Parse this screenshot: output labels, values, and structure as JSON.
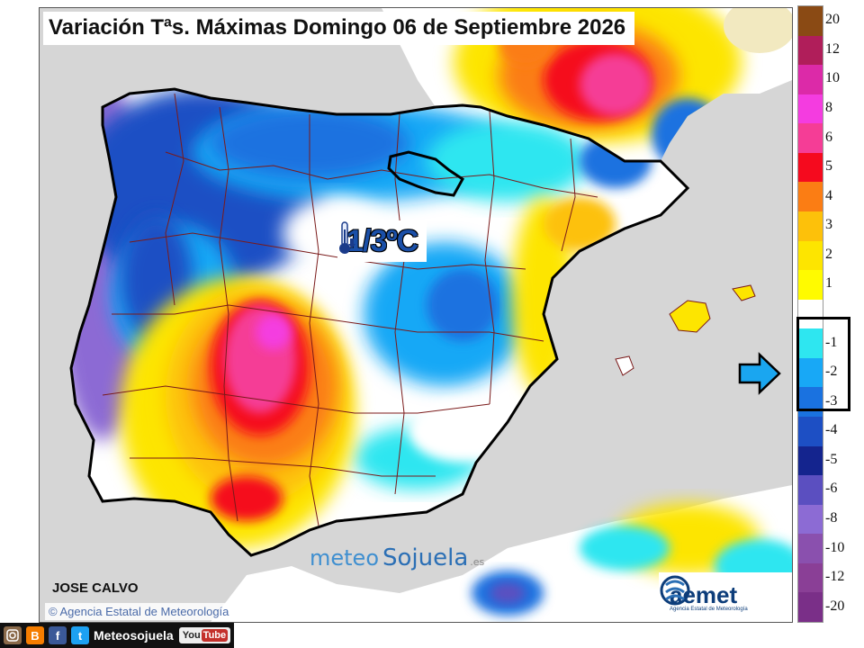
{
  "title": "Variación Tªs. Máximas Domingo 06 de Septiembre 2026",
  "anomaly_label": "1/3ºC",
  "author": "JOSE CALVO",
  "credit": "Agencia Estatal de Meteorología",
  "credit_symbol": "©",
  "brand": {
    "part1": "meteo",
    "part2": "Sojuela",
    "suffix": ".es"
  },
  "aemet_logo": {
    "name": "aemet",
    "sub": "Agencia Estatal de Meteorología"
  },
  "footer": {
    "site_name": "Meteosojuela",
    "youtube_you": "You",
    "youtube_tube": "Tube"
  },
  "legend": [
    {
      "label": "20",
      "color": "#8a4a14"
    },
    {
      "label": "12",
      "color": "#b01e5a"
    },
    {
      "label": "10",
      "color": "#dc2aa8"
    },
    {
      "label": "8",
      "color": "#f43ce0"
    },
    {
      "label": "6",
      "color": "#f53d96"
    },
    {
      "label": "5",
      "color": "#f50a1e"
    },
    {
      "label": "4",
      "color": "#fb7d14"
    },
    {
      "label": "3",
      "color": "#fdc10a"
    },
    {
      "label": "2",
      "color": "#fde500"
    },
    {
      "label": "1",
      "color": "#fffb00"
    },
    {
      "label": "",
      "color": "#ffffff"
    },
    {
      "label": "-1",
      "color": "#2ee6f0"
    },
    {
      "label": "-2",
      "color": "#18a8f6"
    },
    {
      "label": "-3",
      "color": "#1a72e0"
    },
    {
      "label": "-4",
      "color": "#1d4fc4"
    },
    {
      "label": "-5",
      "color": "#14248e"
    },
    {
      "label": "-6",
      "color": "#5b4fc0"
    },
    {
      "label": "-8",
      "color": "#8c6bd4"
    },
    {
      "label": "-10",
      "color": "#8a50ae"
    },
    {
      "label": "-12",
      "color": "#8a3f96"
    },
    {
      "label": "-20",
      "color": "#7a2f88"
    }
  ],
  "colors": {
    "sea": "#d6d6d6",
    "land_neutral": "#ffffff",
    "borders": "#7a1a1a",
    "coast": "#000000",
    "title_text": "#111111",
    "anomaly_text": "#1a4fa8"
  },
  "icons": [
    "thermometer-down-icon",
    "right-arrow-icon",
    "aemet-logo-icon",
    "instagram-icon",
    "blogger-icon",
    "facebook-icon",
    "twitter-icon",
    "youtube-icon"
  ]
}
